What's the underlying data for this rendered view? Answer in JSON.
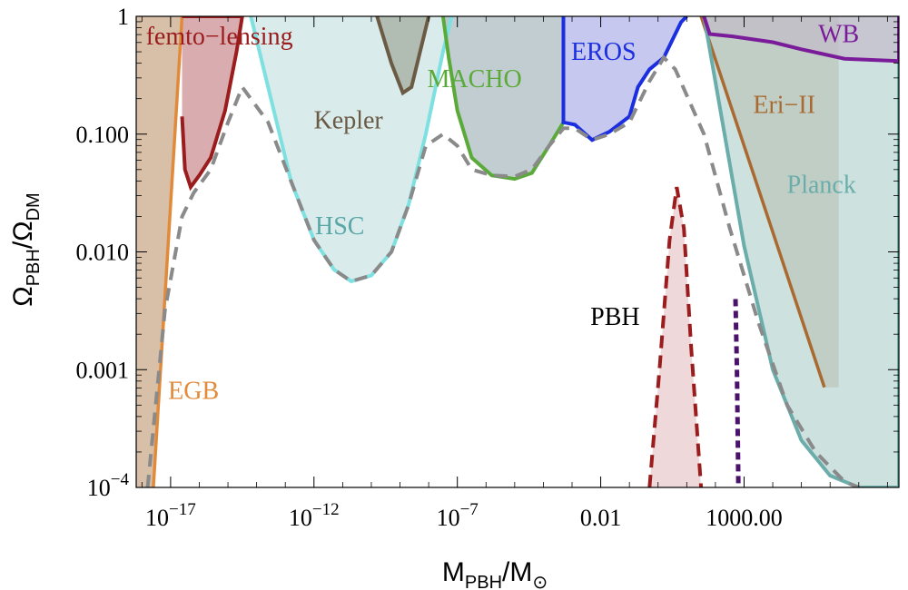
{
  "chart_data": {
    "type": "area",
    "x_scale": "log10",
    "y_scale": "log10",
    "xlim_log10": [
      -18.2,
      8.4
    ],
    "ylim_log10": [
      -4,
      0
    ],
    "xlabel": {
      "main": "M",
      "sub1": "PBH",
      "mid": "/M",
      "sub2": "⊙"
    },
    "ylabel": {
      "main": "Ω",
      "sub1": "PBH",
      "mid": "/Ω",
      "sub2": "DM"
    },
    "x_ticks": [
      {
        "log10": -17,
        "base": "10",
        "exp": "−17"
      },
      {
        "log10": -12,
        "base": "10",
        "exp": "−12"
      },
      {
        "log10": -7,
        "base": "10",
        "exp": "−7"
      },
      {
        "log10": -2,
        "text": "0.01"
      },
      {
        "log10": 3,
        "text": "1000.00"
      }
    ],
    "y_ticks": [
      {
        "log10": 0,
        "text": "1"
      },
      {
        "log10": -1,
        "text": "0.100"
      },
      {
        "log10": -2,
        "text": "0.010"
      },
      {
        "log10": -3,
        "text": "0.001"
      },
      {
        "log10": -4,
        "base": "10",
        "exp": "−4"
      }
    ],
    "series": [
      {
        "name": "EGB",
        "fill": "#c9a98b",
        "stroke": "#e08a3a",
        "boundary": [
          [
            -17.6,
            -4
          ],
          [
            -16.6,
            0
          ]
        ],
        "fill_side": "left"
      },
      {
        "name": "femto-lensing",
        "fill": "#c98a8f",
        "stroke": "#9b1c1c",
        "points": [
          [
            -16.6,
            -0.85
          ],
          [
            -16.5,
            -1.3
          ],
          [
            -16.3,
            -1.45
          ],
          [
            -16.0,
            -1.35
          ],
          [
            -15.6,
            -1.2
          ],
          [
            -15.1,
            -0.8
          ],
          [
            -14.7,
            -0.3
          ],
          [
            -14.5,
            0
          ],
          [
            -16.6,
            0
          ]
        ]
      },
      {
        "name": "HSC",
        "fill": "#c9e2e2",
        "stroke": "#7ee0e0",
        "points": [
          [
            -14.2,
            0
          ],
          [
            -13.5,
            -0.7
          ],
          [
            -12.8,
            -1.4
          ],
          [
            -12.0,
            -1.9
          ],
          [
            -11.3,
            -2.15
          ],
          [
            -10.7,
            -2.25
          ],
          [
            -10.0,
            -2.2
          ],
          [
            -9.3,
            -2.0
          ],
          [
            -8.7,
            -1.6
          ],
          [
            -8.1,
            -1.0
          ],
          [
            -7.5,
            -0.3
          ],
          [
            -7.2,
            0
          ]
        ]
      },
      {
        "name": "Kepler",
        "fill": "#9fa89a",
        "stroke": "#6b5a44",
        "points": [
          [
            -9.8,
            0
          ],
          [
            -9.3,
            -0.4
          ],
          [
            -8.9,
            -0.65
          ],
          [
            -8.6,
            -0.6
          ],
          [
            -8.2,
            -0.2
          ],
          [
            -8.0,
            0
          ]
        ]
      },
      {
        "name": "MACHO",
        "fill": "#a8b8bf",
        "stroke": "#5aaa3a",
        "points": [
          [
            -7.5,
            0
          ],
          [
            -7.3,
            -0.35
          ],
          [
            -7.0,
            -0.8
          ],
          [
            -6.5,
            -1.2
          ],
          [
            -5.8,
            -1.35
          ],
          [
            -5.0,
            -1.38
          ],
          [
            -4.4,
            -1.33
          ],
          [
            -3.8,
            -1.1
          ],
          [
            -3.3,
            -0.9
          ],
          [
            -3.3,
            0
          ]
        ]
      },
      {
        "name": "EROS",
        "fill": "#aeb0ea",
        "stroke": "#1b2fe0",
        "points": [
          [
            -3.3,
            0
          ],
          [
            -3.3,
            -0.9
          ],
          [
            -2.9,
            -0.92
          ],
          [
            -2.3,
            -1.05
          ],
          [
            -1.7,
            -0.98
          ],
          [
            -1.0,
            -0.85
          ],
          [
            -0.7,
            -0.6
          ],
          [
            -0.3,
            -0.45
          ],
          [
            0.2,
            -0.35
          ],
          [
            0.8,
            -0.05
          ],
          [
            1.0,
            0
          ]
        ]
      },
      {
        "name": "Eri-II",
        "fill": "#c9a98b",
        "stroke": "#a86a30",
        "boundary": [
          [
            1.5,
            0
          ],
          [
            5.8,
            -3.15
          ]
        ]
      },
      {
        "name": "Planck",
        "fill": "#b8d4d2",
        "stroke": "#6aadab",
        "points": [
          [
            1.6,
            0
          ],
          [
            3.0,
            -1.95
          ],
          [
            4.0,
            -3.0
          ],
          [
            5.0,
            -3.6
          ],
          [
            6.0,
            -3.9
          ],
          [
            7.0,
            -4.0
          ],
          [
            8.4,
            -4.0
          ],
          [
            8.4,
            0
          ]
        ]
      },
      {
        "name": "WB",
        "fill": "#c3bcc9",
        "stroke": "#7a1c9a",
        "points": [
          [
            1.6,
            0
          ],
          [
            1.8,
            -0.15
          ],
          [
            2.6,
            -0.17
          ],
          [
            4.0,
            -0.22
          ],
          [
            5.0,
            -0.28
          ],
          [
            6.5,
            -0.36
          ],
          [
            8.4,
            -0.38
          ],
          [
            8.4,
            0
          ]
        ]
      },
      {
        "name": "PBH",
        "fill": "#e7c7c9",
        "stroke": "#9b1c1c",
        "points": [
          [
            -0.3,
            -4
          ],
          [
            0.05,
            -3
          ],
          [
            0.4,
            -1.9
          ],
          [
            0.65,
            -1.45
          ],
          [
            0.9,
            -1.8
          ],
          [
            1.15,
            -2.8
          ],
          [
            1.5,
            -4
          ]
        ]
      },
      {
        "name": "PBH (purple)",
        "stroke": "#4a126a",
        "line": [
          [
            2.7,
            -2.4
          ],
          [
            2.75,
            -3
          ],
          [
            2.8,
            -4
          ]
        ]
      },
      {
        "name": "combined bound",
        "stroke": "#8a8a8a",
        "dashed": true,
        "line": [
          [
            -17.8,
            -4
          ],
          [
            -17.2,
            -2.5
          ],
          [
            -16.6,
            -1.7
          ],
          [
            -16.2,
            -1.5
          ],
          [
            -15.6,
            -1.3
          ],
          [
            -15.0,
            -0.9
          ],
          [
            -14.5,
            -0.6
          ],
          [
            -13.6,
            -0.9
          ],
          [
            -12.8,
            -1.4
          ],
          [
            -12.0,
            -1.9
          ],
          [
            -11.3,
            -2.15
          ],
          [
            -10.7,
            -2.25
          ],
          [
            -10.0,
            -2.2
          ],
          [
            -9.3,
            -2.0
          ],
          [
            -8.7,
            -1.6
          ],
          [
            -8.1,
            -1.1
          ],
          [
            -7.5,
            -1.0
          ],
          [
            -7.0,
            -1.1
          ],
          [
            -6.5,
            -1.3
          ],
          [
            -5.8,
            -1.35
          ],
          [
            -5.0,
            -1.36
          ],
          [
            -4.4,
            -1.3
          ],
          [
            -3.8,
            -1.1
          ],
          [
            -3.3,
            -0.95
          ],
          [
            -2.9,
            -0.95
          ],
          [
            -2.3,
            -1.05
          ],
          [
            -1.7,
            -1.0
          ],
          [
            -1.0,
            -0.9
          ],
          [
            -0.3,
            -0.55
          ],
          [
            0.2,
            -0.35
          ],
          [
            0.6,
            -0.45
          ],
          [
            1.6,
            -1.0
          ],
          [
            2.5,
            -1.8
          ],
          [
            3.5,
            -2.6
          ],
          [
            4.5,
            -3.3
          ],
          [
            5.5,
            -3.7
          ],
          [
            6.5,
            -3.95
          ],
          [
            7.0,
            -4.0
          ]
        ]
      }
    ],
    "labels": [
      {
        "text": "femto−lensing",
        "x": -15.3,
        "y": -0.24,
        "color": "#9b1c1c"
      },
      {
        "text": "Kepler",
        "x": -10.8,
        "y": -0.95,
        "color": "#6b5a44"
      },
      {
        "text": "HSC",
        "x": -11.1,
        "y": -1.85,
        "color": "#5aa7a7"
      },
      {
        "text": "MACHO",
        "x": -6.4,
        "y": -0.6,
        "color": "#5aaa3a"
      },
      {
        "text": "EROS",
        "x": -1.9,
        "y": -0.37,
        "color": "#1b2fe0"
      },
      {
        "text": "Eri−II",
        "x": 4.4,
        "y": -0.82,
        "color": "#a86a30"
      },
      {
        "text": "Planck",
        "x": 5.7,
        "y": -1.5,
        "color": "#6aadab"
      },
      {
        "text": "WB",
        "x": 6.3,
        "y": -0.22,
        "color": "#7a1c9a"
      },
      {
        "text": "PBH",
        "x": -1.5,
        "y": -2.62,
        "color": "#000000"
      },
      {
        "text": "EGB",
        "x": -16.2,
        "y": -3.25,
        "color": "#e08a3a"
      }
    ]
  }
}
